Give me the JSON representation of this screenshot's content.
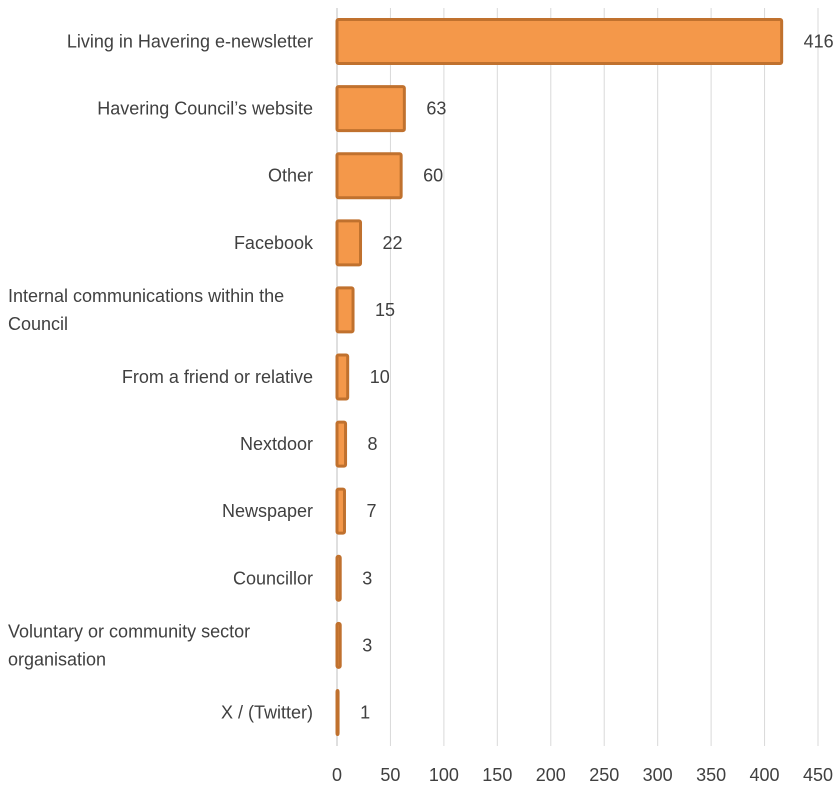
{
  "chart_data": {
    "type": "bar",
    "orientation": "horizontal",
    "categories": [
      "Living in Havering e-newsletter",
      "Havering Council’s website",
      "Other",
      "Facebook",
      "Internal communications within the Council",
      "From a friend or relative",
      "Nextdoor",
      "Newspaper",
      "Councillor",
      "Voluntary or community sector organisation",
      "X / (Twitter)"
    ],
    "category_lines": [
      [
        "Living in Havering e-newsletter"
      ],
      [
        "Havering Council’s website"
      ],
      [
        "Other"
      ],
      [
        "Facebook"
      ],
      [
        "Internal communications within the",
        "Council"
      ],
      [
        "From a friend or relative"
      ],
      [
        "Nextdoor"
      ],
      [
        "Newspaper"
      ],
      [
        "Councillor"
      ],
      [
        "Voluntary or community sector",
        "organisation"
      ],
      [
        "X / (Twitter)"
      ]
    ],
    "values": [
      416,
      63,
      60,
      22,
      15,
      10,
      8,
      7,
      3,
      3,
      1
    ],
    "xlim": [
      0,
      450
    ],
    "x_ticks": [
      0,
      50,
      100,
      150,
      200,
      250,
      300,
      350,
      400,
      450
    ],
    "grid": "vertical",
    "data_labels": true,
    "legend": "none",
    "colors": {
      "bar_fill": "#F4984A",
      "bar_stroke": "#C0712E",
      "grid": "#D9D9D9",
      "axis": "#BFBFBF",
      "text": "#404040"
    }
  }
}
